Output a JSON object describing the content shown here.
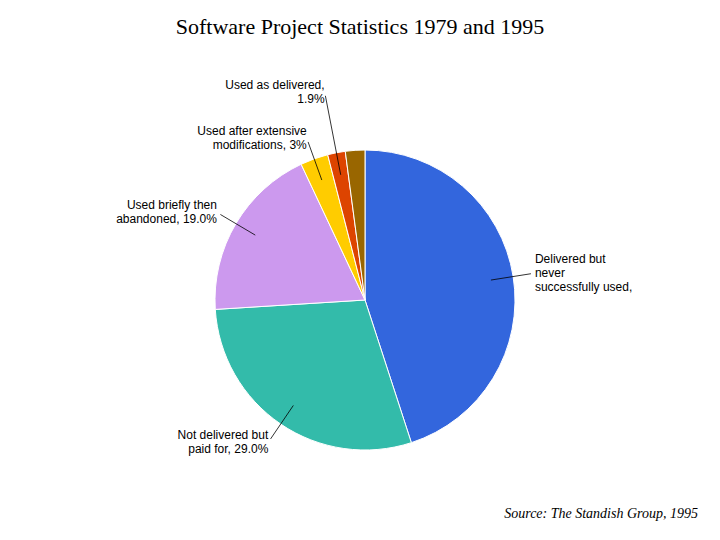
{
  "chart_data": {
    "type": "pie",
    "title": "Software Project Statistics 1979 and 1995",
    "categories": [
      "Delivered but\nnever\nsuccessfully used,",
      "Not delivered but\npaid for, 29.0%",
      "Used briefly then\nabandoned, 19.0%",
      "Used after extensive\nmodifications, 3%",
      "Used as delivered,\n1.9%",
      null
    ],
    "values": [
      45.0,
      29.0,
      19.0,
      3.0,
      1.9,
      2.1
    ],
    "colors": [
      "#3366dd",
      "#33bbaa",
      "#cc99ee",
      "#ffcc00",
      "#dd4400",
      "#996600"
    ],
    "annotations": [
      "Source: The Standish Group, 1995"
    ]
  }
}
